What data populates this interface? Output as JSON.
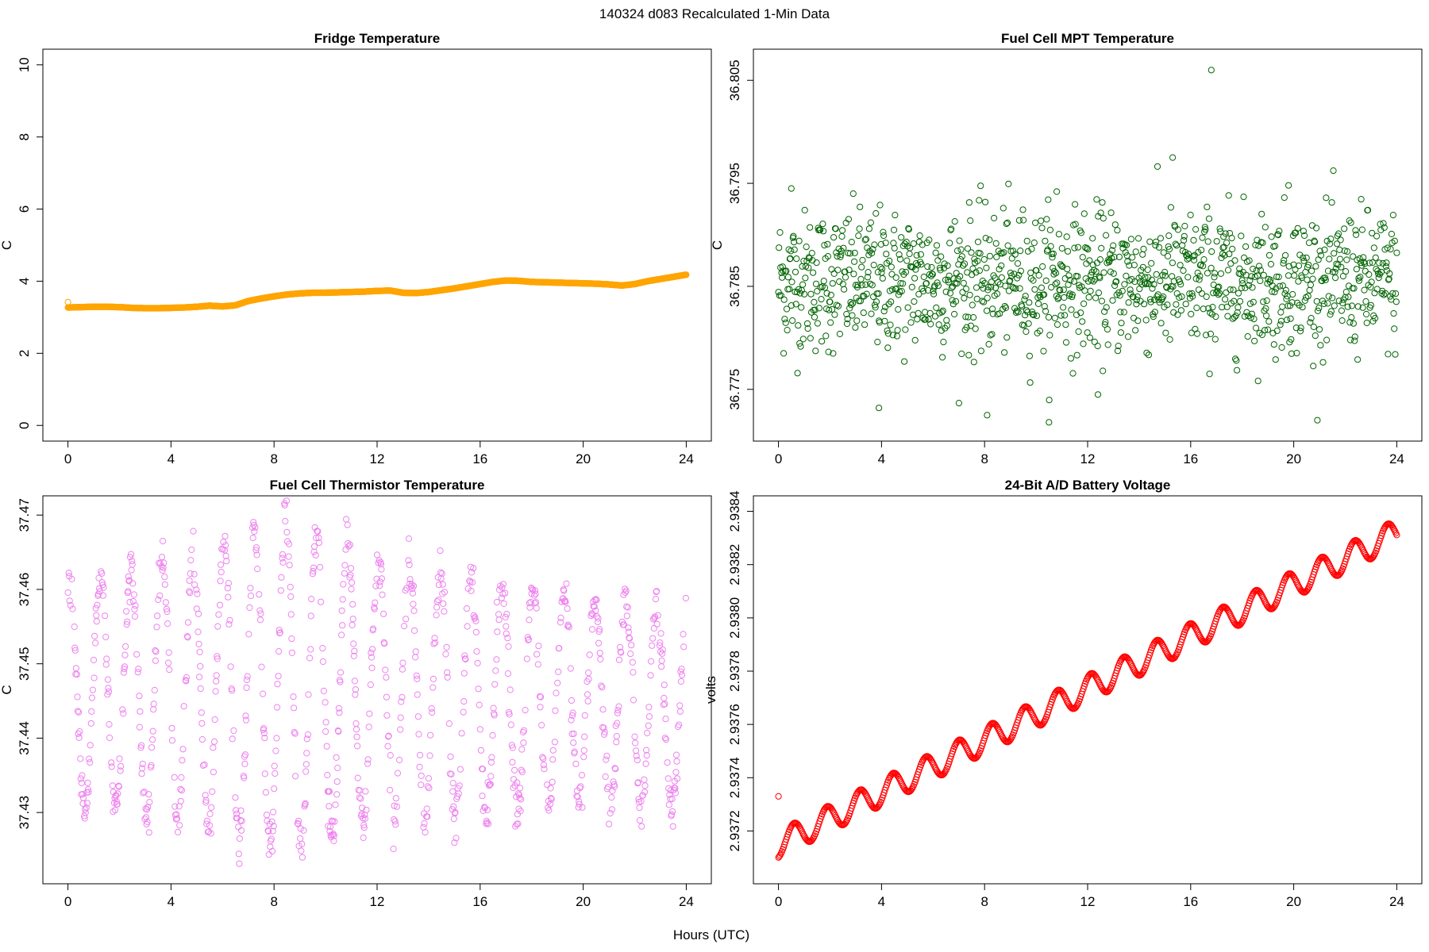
{
  "figure": {
    "main_title": "140324   d083   Recalculated 1-Min Data",
    "xlabel": "Hours (UTC)"
  },
  "chart_data": [
    {
      "id": "fridge",
      "type": "scatter",
      "title": "Fridge Temperature",
      "xlabel": "Hours (UTC)",
      "ylabel": "C",
      "xlim": [
        0,
        24
      ],
      "ylim": [
        0,
        10
      ],
      "xticks": [
        "0",
        "4",
        "8",
        "12",
        "16",
        "20",
        "24"
      ],
      "yticks": [
        "0",
        "2",
        "4",
        "6",
        "8",
        "10"
      ],
      "color": "#FFA500",
      "grid": false,
      "series": [
        {
          "x": [
            0,
            0.5,
            1,
            1.5,
            2,
            2.5,
            3,
            3.5,
            4,
            4.5,
            5,
            5.5,
            6,
            6.5,
            7,
            7.5,
            8,
            8.5,
            9,
            9.5,
            10,
            10.5,
            11,
            11.5,
            12,
            12.5,
            13,
            13.5,
            14,
            14.5,
            15,
            15.5,
            16,
            16.5,
            17,
            17.5,
            18,
            18.5,
            19,
            19.5,
            20,
            20.5,
            21,
            21.5,
            22,
            22.5,
            23,
            23.5,
            24
          ],
          "y": [
            3.27,
            3.28,
            3.29,
            3.29,
            3.28,
            3.26,
            3.25,
            3.25,
            3.26,
            3.27,
            3.29,
            3.32,
            3.3,
            3.33,
            3.45,
            3.52,
            3.58,
            3.63,
            3.66,
            3.68,
            3.68,
            3.69,
            3.7,
            3.71,
            3.73,
            3.74,
            3.68,
            3.67,
            3.7,
            3.75,
            3.8,
            3.86,
            3.92,
            3.98,
            4.02,
            4.01,
            3.98,
            3.97,
            3.96,
            3.95,
            3.94,
            3.93,
            3.91,
            3.88,
            3.92,
            4.0,
            4.06,
            4.12,
            4.18
          ]
        }
      ]
    },
    {
      "id": "mpt",
      "type": "scatter",
      "title": "Fuel Cell MPT Temperature",
      "xlabel": "Hours (UTC)",
      "ylabel": "C",
      "xlim": [
        0,
        24
      ],
      "ylim": [
        36.7715,
        36.8065
      ],
      "xticks": [
        "0",
        "4",
        "8",
        "12",
        "16",
        "20",
        "24"
      ],
      "yticks": [
        "36.775",
        "36.785",
        "36.795",
        "36.805"
      ],
      "color": "#006400",
      "grid": false,
      "distribution": {
        "mean": 36.7855,
        "sd": 0.0034,
        "min": 36.772,
        "max": 36.806
      },
      "highlight_points": [
        [
          16.8,
          36.806
        ],
        [
          15.3,
          36.7975
        ],
        [
          0.5,
          36.7945
        ],
        [
          10.8,
          36.7942
        ],
        [
          19.8,
          36.7948
        ],
        [
          12.4,
          36.7745
        ],
        [
          8.1,
          36.7725
        ],
        [
          10.5,
          36.7718
        ],
        [
          3.9,
          36.7732
        ]
      ]
    },
    {
      "id": "thermistor",
      "type": "scatter",
      "title": "Fuel Cell Thermistor Temperature",
      "xlabel": "Hours (UTC)",
      "ylabel": "C",
      "xlim": [
        0,
        24
      ],
      "ylim": [
        37.4225,
        37.4705
      ],
      "xticks": [
        "0",
        "4",
        "8",
        "12",
        "16",
        "20",
        "24"
      ],
      "yticks": [
        "37.43",
        "37.44",
        "37.45",
        "37.46",
        "37.47"
      ],
      "color": "#EE82EE",
      "grid": false,
      "oscillation": {
        "period_hours": 1.2,
        "center": [
          [
            0,
            37.446
          ],
          [
            9,
            37.447
          ],
          [
            24,
            37.444
          ]
        ],
        "amplitude": [
          [
            0,
            0.015
          ],
          [
            2,
            0.016
          ],
          [
            9,
            0.022
          ],
          [
            12,
            0.018
          ],
          [
            16,
            0.016
          ],
          [
            20,
            0.014
          ],
          [
            24,
            0.013
          ]
        ]
      }
    },
    {
      "id": "battery",
      "type": "scatter",
      "title": "24-Bit A/D Battery Voltage",
      "xlabel": "Hours (UTC)",
      "ylabel": "volts",
      "xlim": [
        0,
        24
      ],
      "ylim": [
        2.93706,
        2.9384
      ],
      "xticks": [
        "0",
        "4",
        "8",
        "12",
        "16",
        "20",
        "24"
      ],
      "yticks": [
        "2.9372",
        "2.9374",
        "2.9376",
        "2.9378",
        "2.9380",
        "2.9382",
        "2.9384"
      ],
      "color": "#FF0000",
      "grid": false,
      "trend": {
        "start": [
          0,
          2.93715
        ],
        "end": [
          24,
          2.93832
        ],
        "oscillation_amplitude": 5e-05,
        "period_hours": 1.28
      },
      "outlier": [
        0,
        2.93733
      ]
    }
  ]
}
